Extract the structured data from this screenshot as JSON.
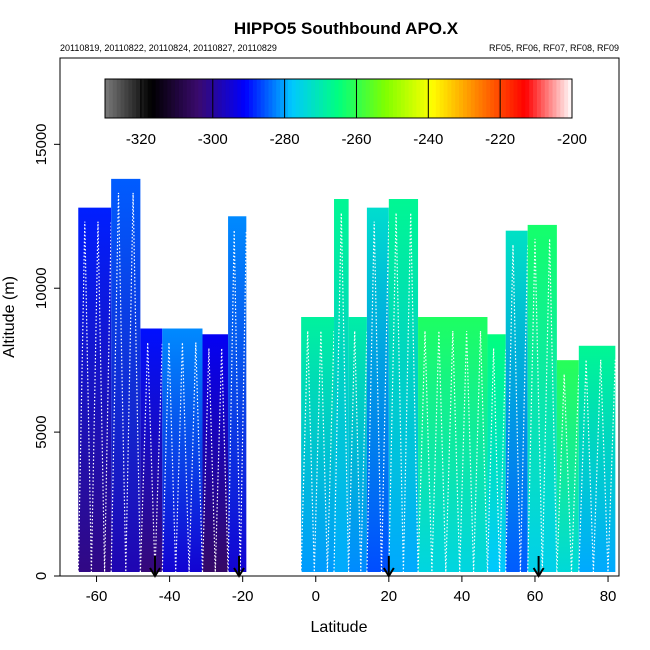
{
  "chart_data": {
    "type": "heatmap",
    "title": "HIPPO5 Southbound APO.X",
    "subtitle_left": "20110819, 20110822, 20110824, 20110827, 20110829",
    "subtitle_right": "RF05, RF06, RF07, RF08, RF09",
    "xlabel": "Latitude",
    "ylabel": "Altitude (m)",
    "xlim": [
      -70,
      83
    ],
    "ylim": [
      0,
      18000
    ],
    "x_ticks": [
      "-60",
      "-40",
      "-20",
      "0",
      "20",
      "40",
      "60",
      "80"
    ],
    "y_ticks": [
      "0",
      "5000",
      "10000",
      "15000"
    ],
    "colorbar": {
      "range": [
        -330,
        -200
      ],
      "ticks": [
        "-320",
        "-300",
        "-280",
        "-260",
        "-240",
        "-220",
        "-200"
      ],
      "colors": [
        "#7a7a7a",
        "#000000",
        "#3a0a6e",
        "#0000ff",
        "#00c8ff",
        "#00ff7f",
        "#7fff00",
        "#ffff00",
        "#ff7f00",
        "#ff0000",
        "#ffffff"
      ]
    },
    "flight_columns": [
      {
        "x0": -65,
        "x1": -56,
        "top": 12800,
        "value": -292
      },
      {
        "x0": -56,
        "x1": -48,
        "top": 13800,
        "value": -288
      },
      {
        "x0": -48,
        "x1": -42,
        "top": 8600,
        "value": -293
      },
      {
        "x0": -42,
        "x1": -31,
        "top": 8600,
        "value": -285
      },
      {
        "x0": -31,
        "x1": -24,
        "top": 8400,
        "value": -295
      },
      {
        "x0": -24,
        "x1": -19,
        "top": 12500,
        "value": -285
      },
      {
        "x0": -4,
        "x1": 5,
        "top": 9000,
        "value": -271
      },
      {
        "x0": 5,
        "x1": 9,
        "top": 13100,
        "value": -270
      },
      {
        "x0": 9,
        "x1": 14,
        "top": 9000,
        "value": -272
      },
      {
        "x0": 14,
        "x1": 20,
        "top": 12800,
        "value": -276
      },
      {
        "x0": 20,
        "x1": 28,
        "top": 13100,
        "value": -270
      },
      {
        "x0": 28,
        "x1": 47,
        "top": 9000,
        "value": -265
      },
      {
        "x0": 47,
        "x1": 52,
        "top": 8400,
        "value": -268
      },
      {
        "x0": 52,
        "x1": 58,
        "top": 12000,
        "value": -275
      },
      {
        "x0": 58,
        "x1": 66,
        "top": 12200,
        "value": -266
      },
      {
        "x0": 66,
        "x1": 72,
        "top": 7500,
        "value": -264
      },
      {
        "x0": 72,
        "x1": 82,
        "top": 8000,
        "value": -270
      }
    ],
    "markers_latitude": [
      -44,
      -21,
      20,
      61
    ]
  }
}
